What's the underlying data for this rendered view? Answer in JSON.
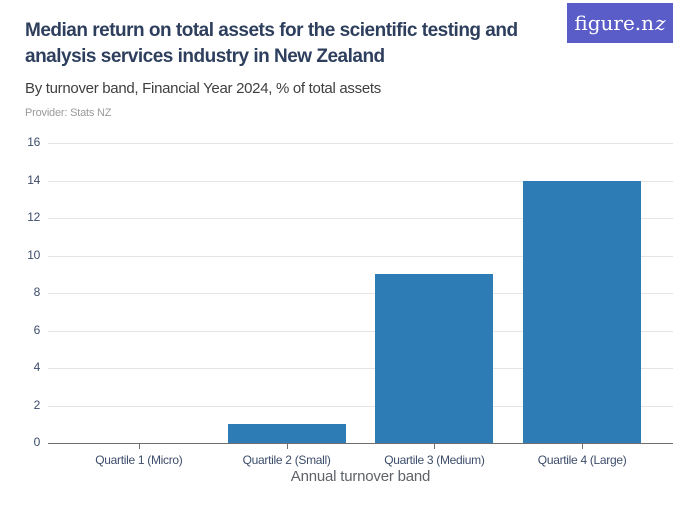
{
  "logo": {
    "text_main": "figure.n",
    "text_z": "z",
    "bg_color": "#5a5cc8"
  },
  "header": {
    "title_lines": [
      "Median return on total assets for the scientific testing and",
      "analysis services industry in New Zealand"
    ],
    "subtitle": "By turnover band, Financial Year 2024, % of total assets",
    "provider_label": "Provider: Stats NZ"
  },
  "chart_data": {
    "type": "bar",
    "title": "Median return on total assets for the scientific testing and analysis services industry in New Zealand",
    "subtitle": "By turnover band, Financial Year 2024, % of total assets",
    "categories": [
      "Quartile 1 (Micro)",
      "Quartile 2 (Small)",
      "Quartile 3 (Medium)",
      "Quartile 4 (Large)"
    ],
    "values": [
      0,
      1,
      9,
      14
    ],
    "xlabel": "Annual turnover band",
    "ylabel": "",
    "ylim": [
      0,
      16
    ],
    "yticks": [
      0,
      2,
      4,
      6,
      8,
      10,
      12,
      14,
      16
    ],
    "grid": "horizontal",
    "legend": "none",
    "bar_color": "#2d7cb5",
    "gridline_color": "#e4e4e4",
    "axis_line_color": "#6e6e6e",
    "tick_label_color": "#3d4d6b"
  }
}
